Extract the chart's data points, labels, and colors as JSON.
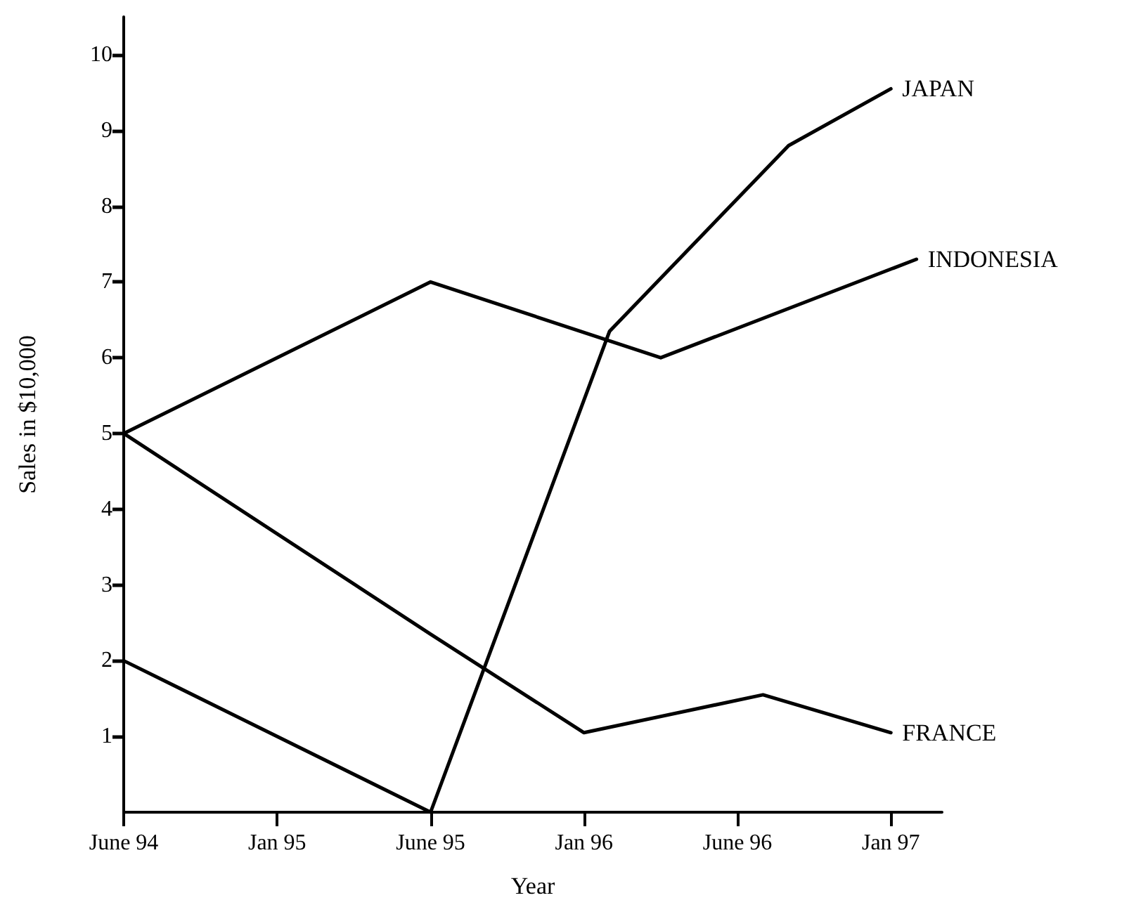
{
  "chart_data": {
    "type": "line",
    "xlabel": "Year",
    "ylabel": "Sales in $10,000",
    "marker": "none",
    "line_style": "solid",
    "grid": false,
    "legend": false,
    "categories": [
      "June 94",
      null,
      null,
      null,
      null,
      null,
      "Jan 95",
      null,
      null,
      null,
      null,
      null,
      "June 95",
      null,
      null,
      null,
      null,
      null,
      "Jan 96",
      null,
      null,
      null,
      null,
      null,
      "June 96",
      null,
      null,
      null,
      null,
      null,
      "Jan 97",
      null,
      null
    ],
    "ylim": [
      0,
      10.5
    ],
    "yticks": [
      1,
      2,
      3,
      4,
      5,
      6,
      7,
      8,
      9,
      10
    ],
    "series": [
      {
        "name": "JAPAN",
        "color": "#000000",
        "values": [
          2,
          null,
          null,
          null,
          null,
          null,
          null,
          null,
          null,
          null,
          null,
          null,
          0,
          null,
          null,
          null,
          null,
          null,
          null,
          6.35,
          null,
          null,
          null,
          null,
          null,
          null,
          8.8,
          null,
          null,
          null,
          9.55,
          null,
          null
        ]
      },
      {
        "name": "INDONESIA",
        "color": "#000000",
        "values": [
          5,
          null,
          null,
          null,
          null,
          null,
          null,
          null,
          null,
          null,
          null,
          null,
          7,
          null,
          null,
          null,
          null,
          null,
          null,
          null,
          null,
          6,
          null,
          null,
          null,
          null,
          null,
          null,
          null,
          null,
          null,
          7.3,
          null
        ]
      },
      {
        "name": "FRANCE",
        "color": "#000000",
        "values": [
          5,
          null,
          null,
          null,
          null,
          null,
          null,
          null,
          null,
          null,
          null,
          null,
          2.35,
          null,
          null,
          null,
          null,
          null,
          1.05,
          null,
          null,
          null,
          null,
          null,
          null,
          1.55,
          null,
          null,
          null,
          null,
          1.05,
          null,
          null
        ]
      }
    ]
  }
}
